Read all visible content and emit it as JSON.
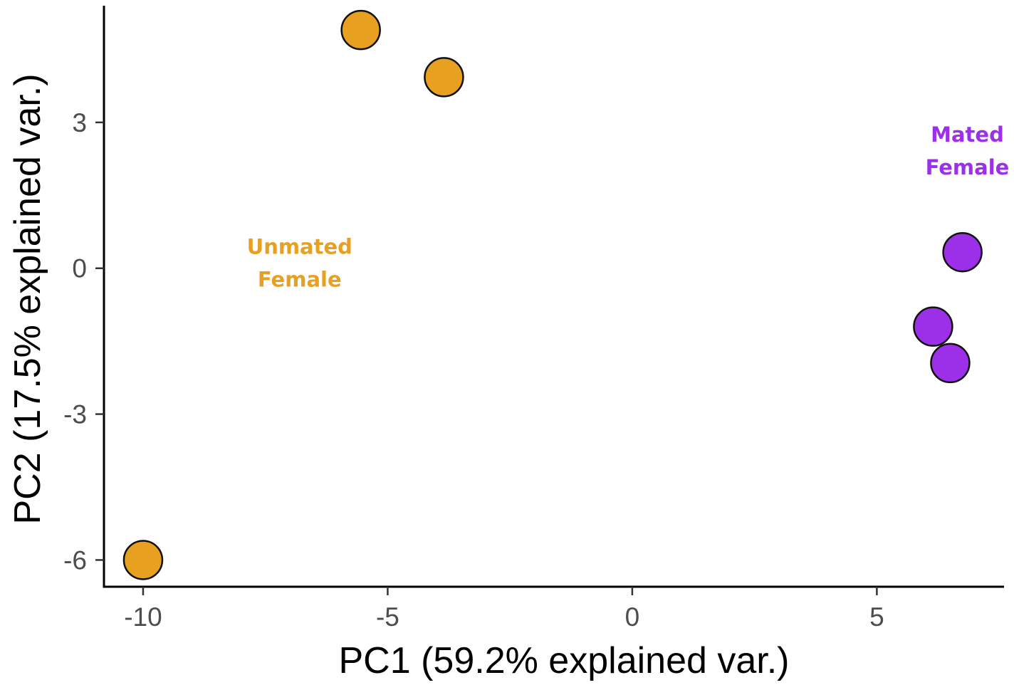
{
  "chart_data": {
    "type": "scatter",
    "title": "",
    "xlabel": "PC1 (59.2% explained var.)",
    "ylabel": "PC2 (17.5% explained var.)",
    "xlim": [
      -10.8,
      7.6
    ],
    "ylim": [
      -6.55,
      5.4
    ],
    "xticks": [
      -10,
      -5,
      0,
      5
    ],
    "xtick_labels": [
      "-10",
      "-5",
      "0",
      "5"
    ],
    "yticks": [
      3,
      0,
      -3,
      -6
    ],
    "ytick_labels": [
      "3",
      "0",
      "-3",
      "-6"
    ],
    "grid": false,
    "series": [
      {
        "color": "#e8a021",
        "points": [
          {
            "x": -5.55,
            "y": 4.9
          },
          {
            "x": -3.85,
            "y": 3.93
          },
          {
            "x": -10.0,
            "y": -6.0
          }
        ]
      },
      {
        "color": "#9b30e8",
        "points": [
          {
            "x": 6.75,
            "y": 0.33
          },
          {
            "x": 6.15,
            "y": -1.2
          },
          {
            "x": 6.5,
            "y": -1.95
          }
        ]
      }
    ],
    "annotations": [
      {
        "text": [
          "Unmated",
          "Female"
        ],
        "color": "#e8a021",
        "x": -6.8,
        "y": 0.3
      },
      {
        "text": [
          "Mated",
          "Female"
        ],
        "color": "#9b30e8",
        "x": 6.85,
        "y": 2.6
      }
    ]
  }
}
